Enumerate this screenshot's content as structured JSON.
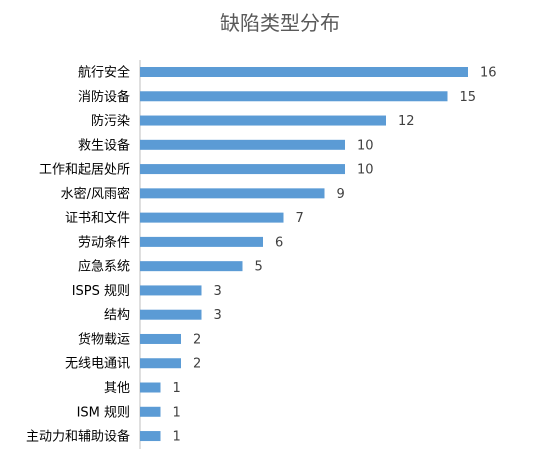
{
  "chart_data": {
    "type": "bar",
    "orientation": "horizontal",
    "title": "缺陷类型分布",
    "xlabel": "",
    "ylabel": "",
    "xlim": [
      0,
      16
    ],
    "grid": false,
    "legend": "none",
    "bar_color": "#5b9bd5",
    "categories": [
      "航行安全",
      "消防设备",
      "防污染",
      "救生设备",
      "工作和起居处所",
      "水密/风雨密",
      "证书和文件",
      "劳动条件",
      "应急系统",
      "ISPS 规则",
      "结构",
      "货物载运",
      "无线电通讯",
      "其他",
      "ISM 规则",
      "主动力和辅助设备"
    ],
    "values": [
      16,
      15,
      12,
      10,
      10,
      9,
      7,
      6,
      5,
      3,
      3,
      2,
      2,
      1,
      1,
      1
    ]
  }
}
